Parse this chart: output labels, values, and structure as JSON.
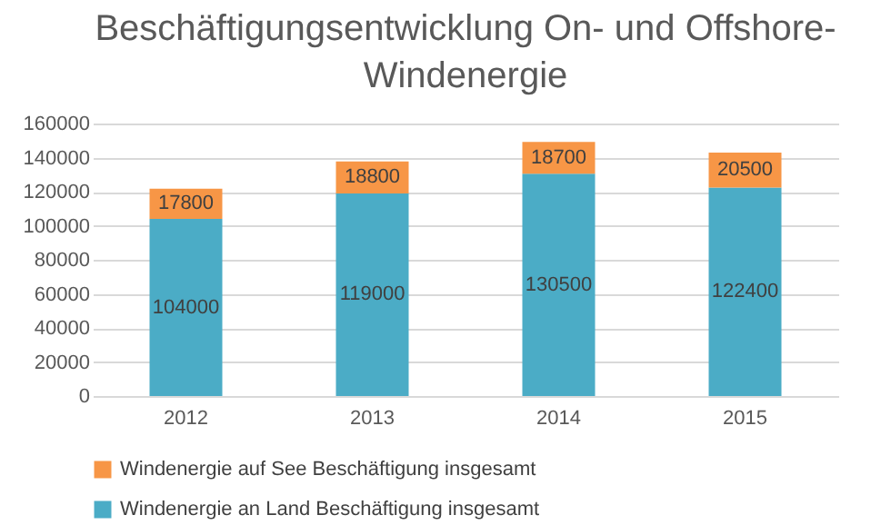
{
  "chart_data": {
    "type": "bar",
    "title": "Beschäftigungsentwicklung On- und Offshore-Windenergie",
    "categories": [
      "2012",
      "2013",
      "2014",
      "2015"
    ],
    "series": [
      {
        "name": "Windenergie an Land Beschäftigung insgesamt",
        "color": "#4bacc6",
        "values": [
          104000,
          119000,
          130500,
          122400
        ]
      },
      {
        "name": "Windenergie auf See Beschäftigung insgesamt",
        "color": "#f79646",
        "values": [
          17800,
          18800,
          18700,
          20500
        ]
      }
    ],
    "stacked": true,
    "data_labels": true,
    "ylim": [
      0,
      160000
    ],
    "yticks": [
      0,
      20000,
      40000,
      60000,
      80000,
      100000,
      120000,
      140000,
      160000
    ],
    "grid": "y",
    "legend": "bottom"
  }
}
